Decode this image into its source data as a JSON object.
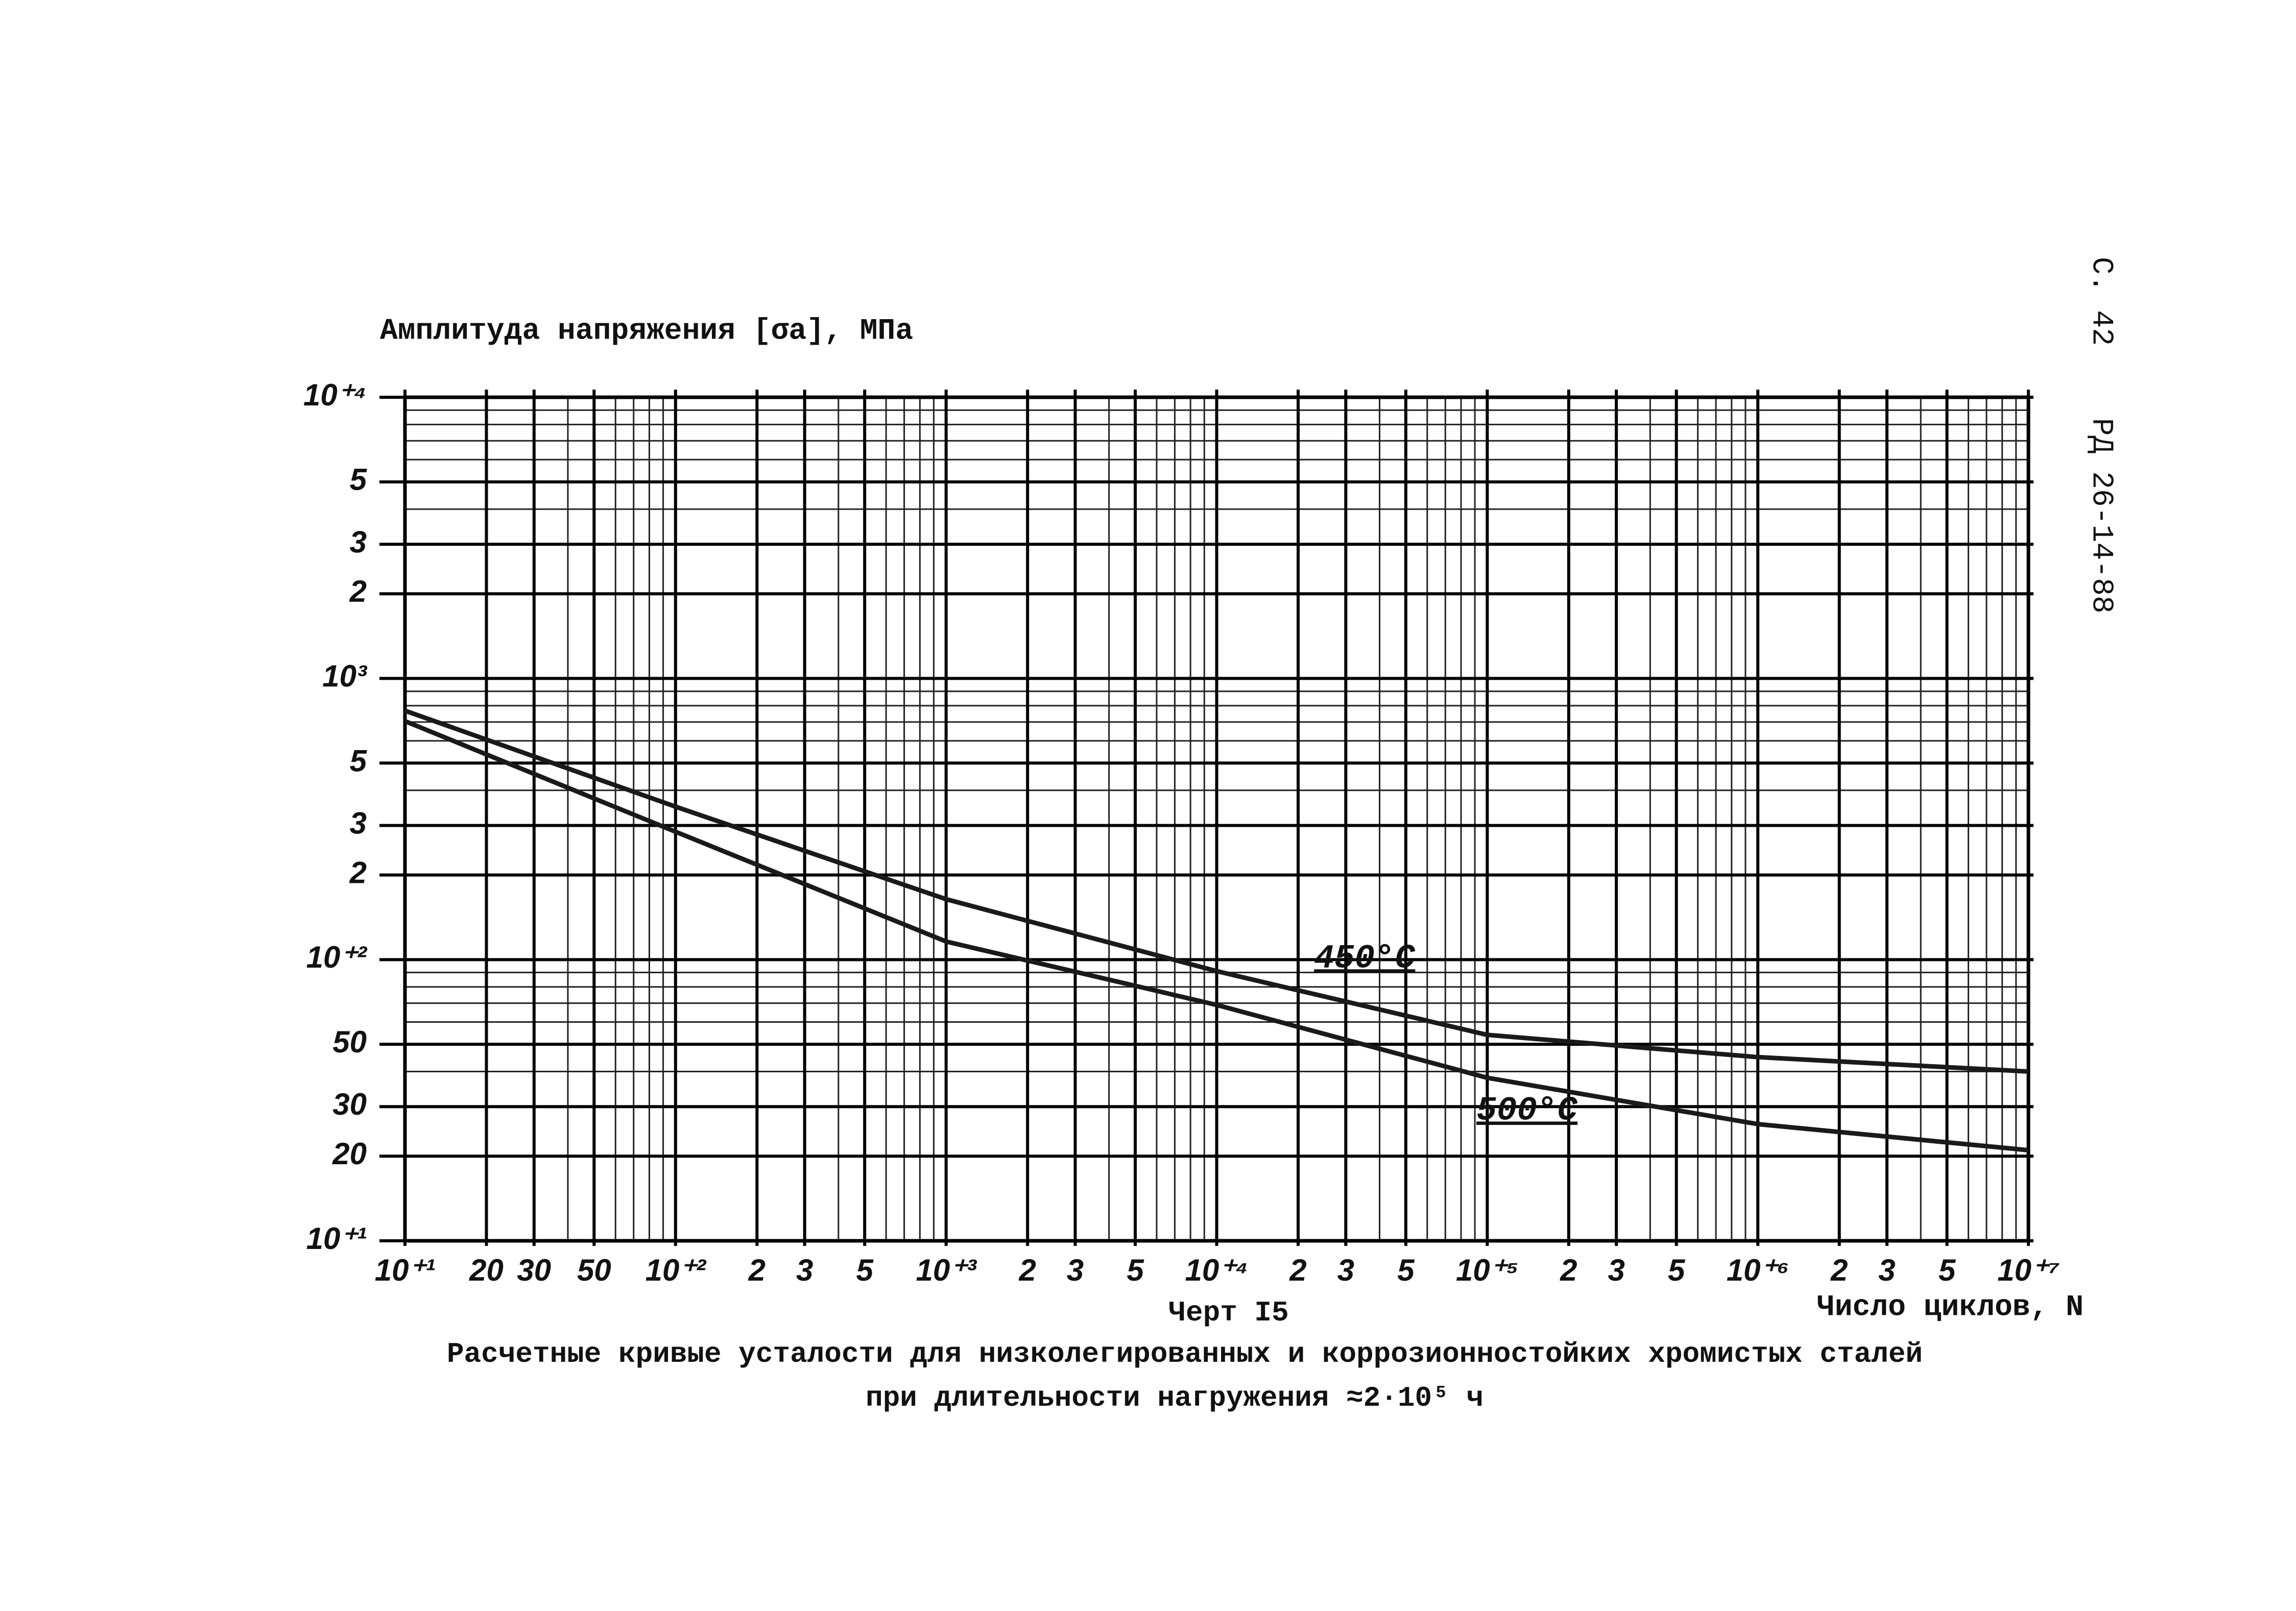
{
  "chart_data": {
    "type": "line",
    "title": "Расчетные кривые усталости для низколегированных и коррозионностойких хромистых сталей",
    "subtitle": "при длительности нагружения ≈2·10⁵ ч",
    "figure_label": "Черт I5",
    "page_number": "С. 42",
    "document_code": "РД 26-14-88",
    "y_label": "Амплитуда напряжения [σa], МПа",
    "x_label": "Число циклов, N",
    "x": [
      10,
      100,
      1000,
      10000,
      100000,
      1000000,
      10000000
    ],
    "series": [
      {
        "name": "450°C",
        "color": "#1a1a1a",
        "values": [
          768,
          350,
          164,
          91,
          54,
          45,
          40
        ]
      },
      {
        "name": "500°C",
        "color": "#1a1a1a",
        "values": [
          705,
          285,
          116,
          69,
          38,
          26,
          21
        ]
      }
    ],
    "xlim": [
      10,
      10000000
    ],
    "ylim": [
      10,
      10000
    ],
    "log_x": true,
    "log_y": true,
    "grid": true,
    "xticks": [
      {
        "value": 10,
        "label": "10⁺¹"
      },
      20,
      30,
      50,
      {
        "value": 100,
        "label": "10⁺²"
      },
      {
        "value": 200,
        "label": "2"
      },
      {
        "value": 300,
        "label": "3"
      },
      {
        "value": 500,
        "label": "5"
      },
      {
        "value": 1000,
        "label": "10⁺³"
      },
      {
        "value": 2000,
        "label": "2"
      },
      {
        "value": 3000,
        "label": "3"
      },
      {
        "value": 5000,
        "label": "5"
      },
      {
        "value": 10000,
        "label": "10⁺⁴"
      },
      {
        "value": 20000,
        "label": "2"
      },
      {
        "value": 30000,
        "label": "3"
      },
      {
        "value": 50000,
        "label": "5"
      },
      {
        "value": 100000,
        "label": "10⁺⁵"
      },
      {
        "value": 200000,
        "label": "2"
      },
      {
        "value": 300000,
        "label": "3"
      },
      {
        "value": 500000,
        "label": "5"
      },
      {
        "value": 1000000,
        "label": "10⁺⁶"
      },
      {
        "value": 2000000,
        "label": "2"
      },
      {
        "value": 3000000,
        "label": "3"
      },
      {
        "value": 5000000,
        "label": "5"
      },
      {
        "value": 10000000,
        "label": "10⁺⁷"
      }
    ],
    "yticks": [
      {
        "value": 10,
        "label": "10⁺¹"
      },
      20,
      30,
      50,
      {
        "value": 100,
        "label": "10⁺²"
      },
      {
        "value": 200,
        "label": "2"
      },
      {
        "value": 300,
        "label": "3"
      },
      {
        "value": 500,
        "label": "5"
      },
      {
        "value": 1000,
        "label": "10³"
      },
      {
        "value": 2000,
        "label": "2"
      },
      {
        "value": 3000,
        "label": "3"
      },
      {
        "value": 5000,
        "label": "5"
      },
      {
        "value": 10000,
        "label": "10⁺⁴"
      }
    ]
  }
}
